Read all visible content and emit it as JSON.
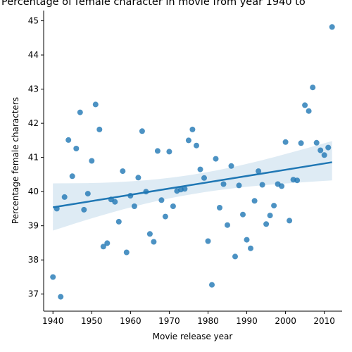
{
  "chart_data": {
    "type": "scatter",
    "title": "Percentage of female character in movie from year 1940 to",
    "xlabel": "Movie release year",
    "ylabel": "Percentage female characters",
    "xlim": [
      1937.6,
      2014.6
    ],
    "ylim": [
      36.5,
      45.3
    ],
    "xticks": [
      1940,
      1950,
      1960,
      1970,
      1980,
      1990,
      2000,
      2010
    ],
    "yticks": [
      37,
      38,
      39,
      40,
      41,
      42,
      43,
      44,
      45
    ],
    "grid": false,
    "legend": "none",
    "colors": {
      "points": "#1f77b4",
      "line": "#1f77b4",
      "band": "#1f77b4"
    },
    "points": [
      [
        1940,
        37.5
      ],
      [
        1941,
        39.5
      ],
      [
        1942,
        36.92
      ],
      [
        1943,
        39.84
      ],
      [
        1944,
        41.51
      ],
      [
        1945,
        40.45
      ],
      [
        1946,
        41.26
      ],
      [
        1947,
        42.32
      ],
      [
        1948,
        39.47
      ],
      [
        1949,
        39.94
      ],
      [
        1950,
        40.9
      ],
      [
        1951,
        42.55
      ],
      [
        1952,
        41.82
      ],
      [
        1953,
        38.39
      ],
      [
        1954,
        38.49
      ],
      [
        1955,
        39.77
      ],
      [
        1956,
        39.7
      ],
      [
        1957,
        39.12
      ],
      [
        1958,
        40.6
      ],
      [
        1959,
        38.22
      ],
      [
        1960,
        39.88
      ],
      [
        1961,
        39.57
      ],
      [
        1962,
        40.41
      ],
      [
        1963,
        41.77
      ],
      [
        1964,
        40.0
      ],
      [
        1965,
        38.76
      ],
      [
        1966,
        38.53
      ],
      [
        1967,
        41.19
      ],
      [
        1968,
        39.75
      ],
      [
        1969,
        39.27
      ],
      [
        1970,
        41.17
      ],
      [
        1971,
        39.57
      ],
      [
        1972,
        40.02
      ],
      [
        1973,
        40.06
      ],
      [
        1974,
        40.08
      ],
      [
        1975,
        41.5
      ],
      [
        1976,
        41.82
      ],
      [
        1977,
        41.35
      ],
      [
        1978,
        40.65
      ],
      [
        1979,
        40.4
      ],
      [
        1980,
        38.55
      ],
      [
        1981,
        37.27
      ],
      [
        1982,
        40.96
      ],
      [
        1983,
        39.53
      ],
      [
        1984,
        40.22
      ],
      [
        1985,
        39.02
      ],
      [
        1986,
        40.75
      ],
      [
        1987,
        38.1
      ],
      [
        1988,
        40.18
      ],
      [
        1989,
        39.33
      ],
      [
        1990,
        38.59
      ],
      [
        1991,
        38.34
      ],
      [
        1992,
        39.73
      ],
      [
        1993,
        40.6
      ],
      [
        1994,
        40.2
      ],
      [
        1995,
        39.05
      ],
      [
        1996,
        39.3
      ],
      [
        1997,
        39.59
      ],
      [
        1998,
        40.22
      ],
      [
        1999,
        40.16
      ],
      [
        2000,
        41.45
      ],
      [
        2001,
        39.15
      ],
      [
        2002,
        40.35
      ],
      [
        2003,
        40.33
      ],
      [
        2004,
        41.42
      ],
      [
        2005,
        42.53
      ],
      [
        2006,
        42.36
      ],
      [
        2007,
        43.05
      ],
      [
        2008,
        41.43
      ],
      [
        2009,
        41.21
      ],
      [
        2010,
        41.07
      ],
      [
        2011,
        41.29
      ],
      [
        2012,
        44.82
      ]
    ],
    "regression": {
      "x_range": [
        1940,
        2012
      ],
      "line": [
        39.54,
        40.86
      ],
      "ci_lower": [
        38.86,
        40.33
      ],
      "ci_upper": [
        40.24,
        41.48
      ]
    }
  }
}
